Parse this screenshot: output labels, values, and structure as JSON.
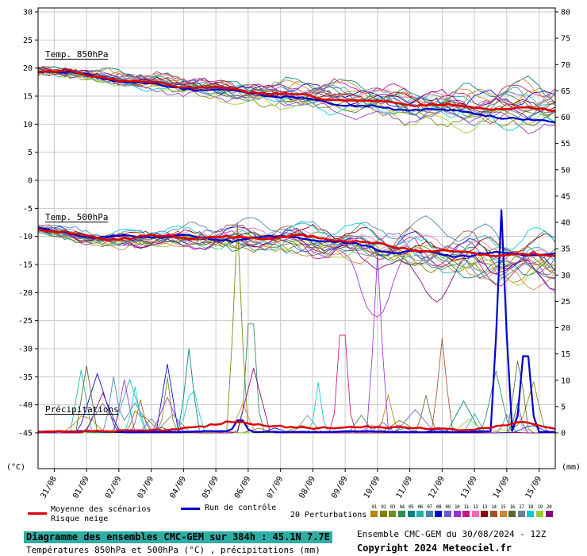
{
  "chart_data": {
    "type": "line",
    "title": "Diagramme des ensembles CMC-GEM sur 384h : 45.1N 7.7E",
    "subtitle": "Températures 850hPa et 500hPa (°C) , précipitations (mm)",
    "x_tick_labels": [
      "31/08",
      "01/09",
      "02/09",
      "03/09",
      "04/09",
      "05/09",
      "06/09",
      "07/09",
      "08/09",
      "09/09",
      "10/09",
      "11/09",
      "12/09",
      "13/09",
      "14/09",
      "15/09"
    ],
    "hours_total": 384,
    "first_day_tick_hour": 12,
    "axes": {
      "left_label": "(°C)",
      "right_label": "(mm)",
      "left_ticks": [
        30,
        25,
        20,
        15,
        10,
        5,
        0,
        -5,
        -10,
        -15,
        -20,
        -25,
        -30,
        -35,
        -40,
        -45
      ],
      "right_ticks": [
        80,
        75,
        70,
        65,
        60,
        55,
        50,
        45,
        40,
        35,
        30,
        25,
        20,
        15,
        10,
        5,
        0
      ],
      "left_range": [
        -45,
        30
      ],
      "right_range": [
        0,
        80
      ],
      "grid": true
    },
    "panels": {
      "temp850": {
        "label": "Temp. 850hPa",
        "mean_daily": [
          19.6,
          19.2,
          18.4,
          17.6,
          17.1,
          16.6,
          16.1,
          15.6,
          15.1,
          14.6,
          14.1,
          13.7,
          13.5,
          13.2,
          13.0,
          12.7,
          12.5
        ],
        "control_daily": [
          19.6,
          19.1,
          18.2,
          17.3,
          16.8,
          16.3,
          15.9,
          15.3,
          14.6,
          13.9,
          13.3,
          12.6,
          12.8,
          12.1,
          11.6,
          10.8,
          10.2
        ],
        "spread_start": 0.5,
        "spread_end": 3.3
      },
      "temp500": {
        "label": "Temp. 500hPa",
        "mean_daily": [
          -8.6,
          -9.6,
          -10.4,
          -10.2,
          -10.0,
          -10.1,
          -10.3,
          -10.1,
          -10.0,
          -10.4,
          -10.9,
          -11.9,
          -12.4,
          -12.9,
          -13.1,
          -13.4,
          -13.5
        ],
        "control_daily": [
          -8.6,
          -9.5,
          -10.2,
          -10.0,
          -9.8,
          -10.3,
          -10.6,
          -10.3,
          -10.1,
          -11.0,
          -11.6,
          -12.7,
          -13.0,
          -13.4,
          -13.0,
          -13.2,
          -13.1
        ],
        "spread_start": 0.6,
        "spread_end": 4.4,
        "extra_dips": [
          {
            "member": 9,
            "hour": 250,
            "depth": 9,
            "width": 16
          },
          {
            "member": 19,
            "hour": 296,
            "depth": 6,
            "width": 20
          }
        ]
      },
      "precip": {
        "label": "Précipitations",
        "mean_daily": [
          0.2,
          0.3,
          0.3,
          0.5,
          0.6,
          1.1,
          2.2,
          1.4,
          1.0,
          0.9,
          1.2,
          1.0,
          0.8,
          0.6,
          0.9,
          2.2,
          0.6
        ],
        "feature_spikes": [
          {
            "member": 1,
            "hour": 148,
            "mm": 40
          },
          {
            "member": 3,
            "hour": 158,
            "mm": 29
          },
          {
            "member": 4,
            "hour": 112,
            "mm": 16
          },
          {
            "member": 9,
            "hour": 252,
            "mm": 34
          },
          {
            "member": 10,
            "hour": 226,
            "mm": 26
          },
          {
            "member": 13,
            "hour": 300,
            "mm": 18
          }
        ],
        "control_spikes": [
          {
            "hour": 344,
            "mm": 42
          },
          {
            "hour": 362,
            "mm": 20
          },
          {
            "hour": 150,
            "mm": 3
          }
        ]
      }
    },
    "colors": {
      "mean": "#dd0000",
      "control": "#0000cc",
      "grid": "#c9c9c9",
      "frame": "#000000",
      "background": "#ffffff"
    },
    "members": {
      "count": 20,
      "colors": [
        "#b8860b",
        "#808000",
        "#6b8e23",
        "#2e8b57",
        "#008080",
        "#20b2aa",
        "#4682b4",
        "#0000cd",
        "#6a5acd",
        "#9932cc",
        "#c71585",
        "#ff69b4",
        "#8b0000",
        "#a0522d",
        "#cd853f",
        "#556b2f",
        "#708090",
        "#00ced1",
        "#9acd32",
        "#800080"
      ]
    },
    "legend_position": "bottom"
  },
  "legend": {
    "mean_label": "Moyenne des scénarios",
    "snow_label": "Risque neige",
    "control_label": "Run de contrôle",
    "perturbations_label": "20 Perturbations",
    "member_numbers": [
      "01",
      "02",
      "03",
      "04",
      "05",
      "06",
      "07",
      "08",
      "09",
      "10",
      "11",
      "12",
      "13",
      "14",
      "15",
      "16",
      "17",
      "18",
      "19",
      "20"
    ]
  },
  "footer": {
    "line1": "Diagramme des ensembles CMC-GEM sur 384h : 45.1N 7.7E",
    "line2": "Températures 850hPa et 500hPa (°C) , précipitations (mm)",
    "right1": "Ensemble CMC-GEM du 30/08/2024 - 12Z",
    "right2": "Copyright 2024 Meteociel.fr",
    "highlight_color": "#2fada4"
  }
}
